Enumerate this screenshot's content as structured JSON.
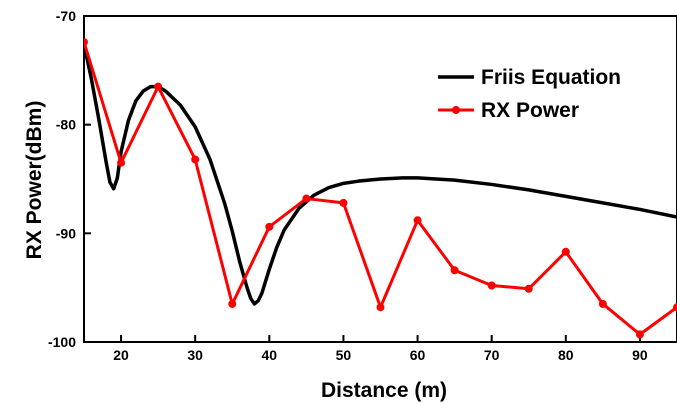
{
  "chart_data": {
    "type": "line",
    "xlabel": "Distance (m)",
    "ylabel": "RX Power(dBm)",
    "xlim": [
      15,
      95
    ],
    "ylim": [
      -100,
      -70
    ],
    "x_ticks": [
      20,
      30,
      40,
      50,
      60,
      70,
      80,
      90
    ],
    "x_tick_labels": [
      "20",
      "30",
      "40",
      "50",
      "60",
      "70",
      "80",
      "90"
    ],
    "y_ticks": [
      -100,
      -90,
      -80,
      -70
    ],
    "y_tick_labels": [
      "-100",
      "-90",
      "-80",
      "-70"
    ],
    "legend_position": "top-right",
    "series": [
      {
        "name": "Friis Equation",
        "color": "#000000",
        "marker": "none",
        "x": [
          15,
          16,
          17,
          18,
          18.5,
          19,
          19.5,
          20,
          21,
          22,
          23,
          24,
          25,
          26,
          28,
          30,
          32,
          34,
          35,
          36,
          37,
          37.5,
          38,
          38.5,
          39,
          40,
          41,
          42,
          44,
          46,
          48,
          50,
          52,
          55,
          58,
          60,
          65,
          70,
          75,
          80,
          85,
          90,
          95
        ],
        "y": [
          -72.6,
          -75.8,
          -79.5,
          -83.5,
          -85.3,
          -85.9,
          -84.9,
          -82.5,
          -79.6,
          -77.8,
          -76.9,
          -76.5,
          -76.5,
          -76.9,
          -78.2,
          -80.2,
          -83.2,
          -87.3,
          -89.8,
          -92.6,
          -95.0,
          -96.0,
          -96.5,
          -96.2,
          -95.5,
          -93.3,
          -91.3,
          -89.7,
          -87.7,
          -86.5,
          -85.8,
          -85.4,
          -85.2,
          -85.0,
          -84.9,
          -84.9,
          -85.1,
          -85.5,
          -86.0,
          -86.6,
          -87.2,
          -87.8,
          -88.5
        ]
      },
      {
        "name": "RX Power",
        "color": "#ff0000",
        "marker": "circle",
        "x": [
          15,
          20,
          25,
          30,
          35,
          40,
          45,
          50,
          55,
          60,
          65,
          70,
          75,
          80,
          85,
          90,
          95
        ],
        "y": [
          -72.4,
          -83.5,
          -76.5,
          -83.2,
          -96.5,
          -89.4,
          -86.8,
          -87.2,
          -96.8,
          -88.8,
          -93.4,
          -94.8,
          -95.1,
          -91.7,
          -96.5,
          -99.3,
          -96.8
        ]
      }
    ]
  }
}
